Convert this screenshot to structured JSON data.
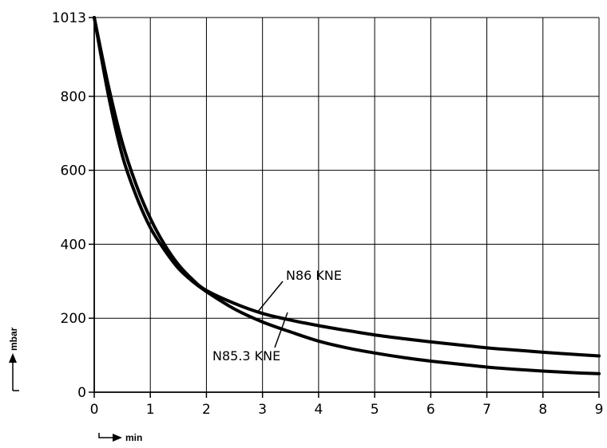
{
  "chart_data": {
    "type": "line",
    "title": "",
    "xlabel": "min",
    "ylabel": "mbar",
    "xlim": [
      0,
      9
    ],
    "ylim": [
      0,
      1013
    ],
    "grid": true,
    "x_ticks": [
      0,
      1,
      2,
      3,
      4,
      5,
      6,
      7,
      8,
      9
    ],
    "y_ticks": [
      0,
      200,
      400,
      600,
      800,
      1013
    ],
    "x_tick_labels": [
      "0",
      "1",
      "2",
      "3",
      "4",
      "5",
      "6",
      "7",
      "8",
      "9"
    ],
    "y_tick_labels": [
      "0",
      "200",
      "400",
      "600",
      "800",
      "1013"
    ],
    "series": [
      {
        "name": "N86 KNE",
        "x": [
          0,
          0.25,
          0.5,
          0.75,
          1,
          1.25,
          1.5,
          1.75,
          2,
          2.5,
          3,
          3.5,
          4,
          4.5,
          5,
          5.5,
          6,
          6.5,
          7,
          7.5,
          8,
          8.5,
          9
        ],
        "y": [
          1013,
          830,
          675,
          560,
          470,
          400,
          345,
          305,
          275,
          240,
          213,
          195,
          180,
          167,
          155,
          145,
          136,
          128,
          120,
          114,
          108,
          103,
          98
        ]
      },
      {
        "name": "N85.3 KNE",
        "x": [
          0,
          0.25,
          0.5,
          0.75,
          1,
          1.25,
          1.5,
          1.75,
          2,
          2.5,
          3,
          3.5,
          4,
          4.5,
          5,
          5.5,
          6,
          6.5,
          7,
          7.5,
          8,
          8.5,
          9
        ],
        "y": [
          1013,
          805,
          640,
          530,
          445,
          385,
          335,
          300,
          272,
          225,
          190,
          163,
          138,
          120,
          106,
          94,
          84,
          76,
          68,
          62,
          57,
          53,
          50
        ]
      }
    ]
  }
}
